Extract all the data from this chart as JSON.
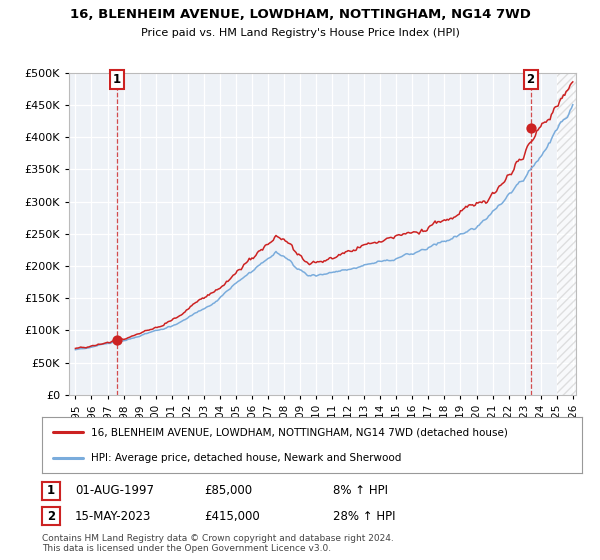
{
  "title": "16, BLENHEIM AVENUE, LOWDHAM, NOTTINGHAM, NG14 7WD",
  "subtitle": "Price paid vs. HM Land Registry's House Price Index (HPI)",
  "legend_line1": "16, BLENHEIM AVENUE, LOWDHAM, NOTTINGHAM, NG14 7WD (detached house)",
  "legend_line2": "HPI: Average price, detached house, Newark and Sherwood",
  "transaction1_date": "01-AUG-1997",
  "transaction1_price": "£85,000",
  "transaction1_hpi": "8% ↑ HPI",
  "transaction2_date": "15-MAY-2023",
  "transaction2_price": "£415,000",
  "transaction2_hpi": "28% ↑ HPI",
  "footer": "Contains HM Land Registry data © Crown copyright and database right 2024.\nThis data is licensed under the Open Government Licence v3.0.",
  "red_color": "#cc2222",
  "blue_color": "#7aacdc",
  "bg_color": "#eef2f7",
  "grid_color": "#ffffff",
  "ylim": [
    0,
    500000
  ],
  "yticks": [
    0,
    50000,
    100000,
    150000,
    200000,
    250000,
    300000,
    350000,
    400000,
    450000,
    500000
  ],
  "sale1_year": 1997.58,
  "sale1_price": 85000,
  "sale2_year": 2023.37,
  "sale2_price": 415000
}
